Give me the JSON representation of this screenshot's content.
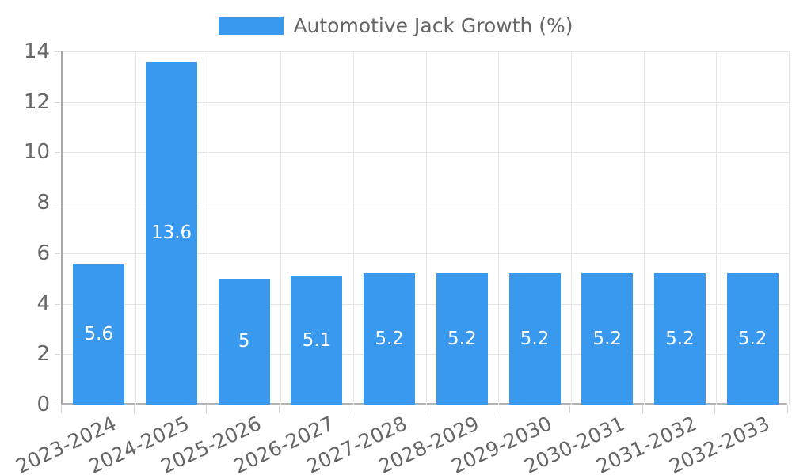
{
  "chart_data": {
    "type": "bar",
    "title": "",
    "legend": {
      "label": "Automotive Jack Growth (%)",
      "position": "top"
    },
    "categories": [
      "2023-2024",
      "2024-2025",
      "2025-2026",
      "2026-2027",
      "2027-2028",
      "2028-2029",
      "2029-2030",
      "2030-2031",
      "2031-2032",
      "2032-2033"
    ],
    "values": [
      5.6,
      13.6,
      5,
      5.1,
      5.2,
      5.2,
      5.2,
      5.2,
      5.2,
      5.2
    ],
    "value_labels": [
      "5.6",
      "13.6",
      "5",
      "5.1",
      "5.2",
      "5.2",
      "5.2",
      "5.2",
      "5.2",
      "5.2"
    ],
    "xlabel": "",
    "ylabel": "",
    "ylim": [
      0,
      14
    ],
    "yticks": [
      0,
      2,
      4,
      6,
      8,
      10,
      12,
      14
    ],
    "grid": true,
    "colors": {
      "bar": "#3999EE",
      "tick_text": "#666666",
      "gridline": "#e5e5e5",
      "axis_line": "#a7a7a7",
      "value_label_text": "#ffffff"
    }
  }
}
